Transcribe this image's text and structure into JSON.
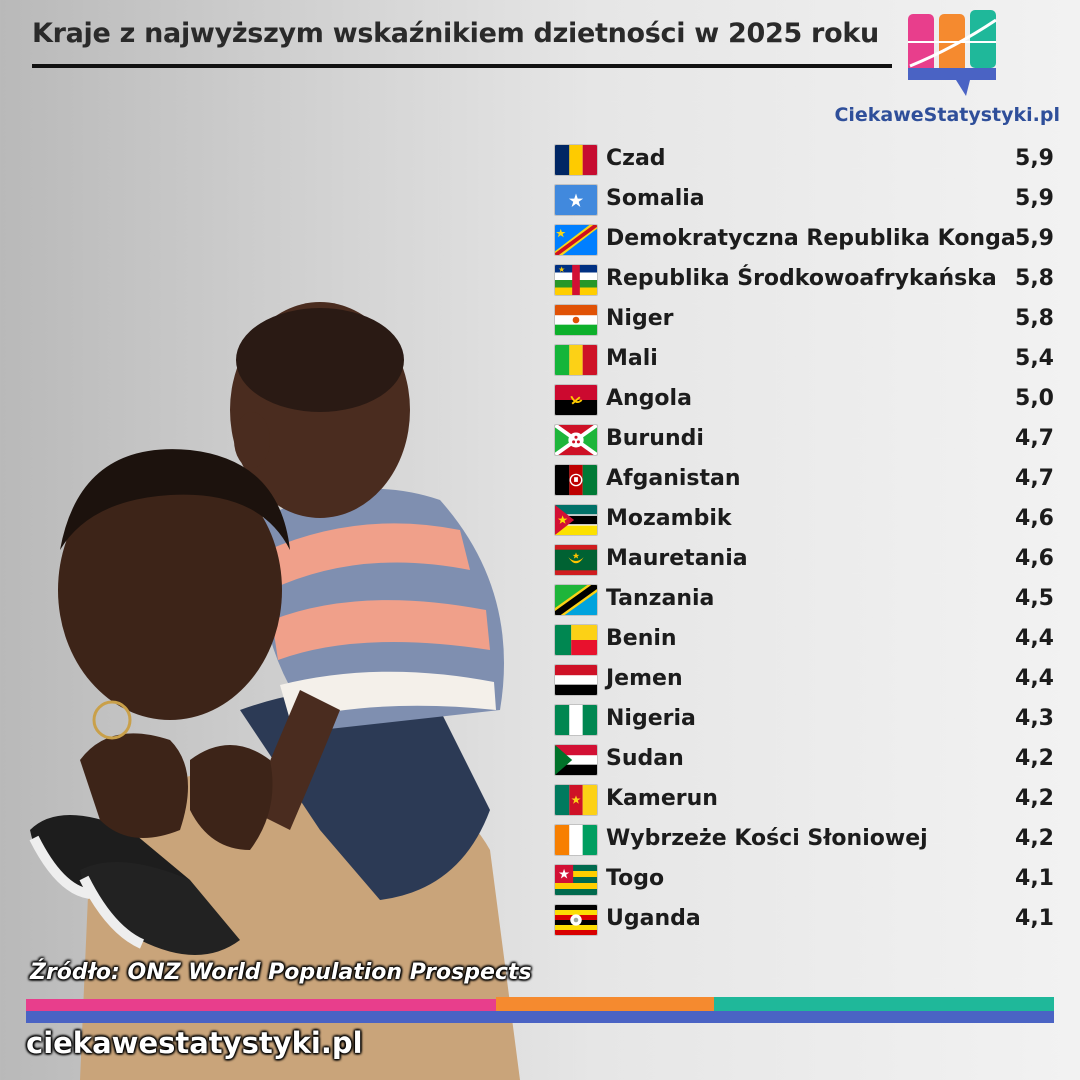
{
  "title": "Kraje z najwyższym wskaźnikiem dzietności w 2025 roku",
  "logo": {
    "text": "CiekaweStatystyki.pl"
  },
  "chart_data": {
    "type": "table",
    "title": "Kraje z najwyższym wskaźnikiem dzietności w 2025 roku",
    "categories": [
      "Czad",
      "Somalia",
      "Demokratyczna Republika Konga",
      "Republika Środkowoafrykańska",
      "Niger",
      "Mali",
      "Angola",
      "Burundi",
      "Afganistan",
      "Mozambik",
      "Mauretania",
      "Tanzania",
      "Benin",
      "Jemen",
      "Nigeria",
      "Sudan",
      "Kamerun",
      "Wybrzeże Kości Słoniowej",
      "Togo",
      "Uganda"
    ],
    "values": [
      5.9,
      5.9,
      5.9,
      5.8,
      5.8,
      5.4,
      5.0,
      4.7,
      4.7,
      4.6,
      4.6,
      4.5,
      4.4,
      4.4,
      4.3,
      4.2,
      4.2,
      4.2,
      4.1,
      4.1
    ],
    "value_labels": [
      "5,9",
      "5,9",
      "5,9",
      "5,8",
      "5,8",
      "5,4",
      "5,0",
      "4,7",
      "4,7",
      "4,6",
      "4,6",
      "4,5",
      "4,4",
      "4,4",
      "4,3",
      "4,2",
      "4,2",
      "4,2",
      "4,1",
      "4,1"
    ],
    "flag_icons": [
      "chad-flag-icon",
      "somalia-flag-icon",
      "dr-congo-flag-icon",
      "car-flag-icon",
      "niger-flag-icon",
      "mali-flag-icon",
      "angola-flag-icon",
      "burundi-flag-icon",
      "afghanistan-flag-icon",
      "mozambique-flag-icon",
      "mauritania-flag-icon",
      "tanzania-flag-icon",
      "benin-flag-icon",
      "yemen-flag-icon",
      "nigeria-flag-icon",
      "sudan-flag-icon",
      "cameroon-flag-icon",
      "ivory-coast-flag-icon",
      "togo-flag-icon",
      "uganda-flag-icon"
    ]
  },
  "source": "Źródło: ONZ World Population Prospects",
  "footer": {
    "site": "ciekawestatystyki.pl"
  },
  "colors": {
    "accent_pink": "#e83e8c",
    "accent_orange": "#f58a2f",
    "accent_teal": "#1fb89a",
    "accent_blue": "#4a63c4"
  }
}
